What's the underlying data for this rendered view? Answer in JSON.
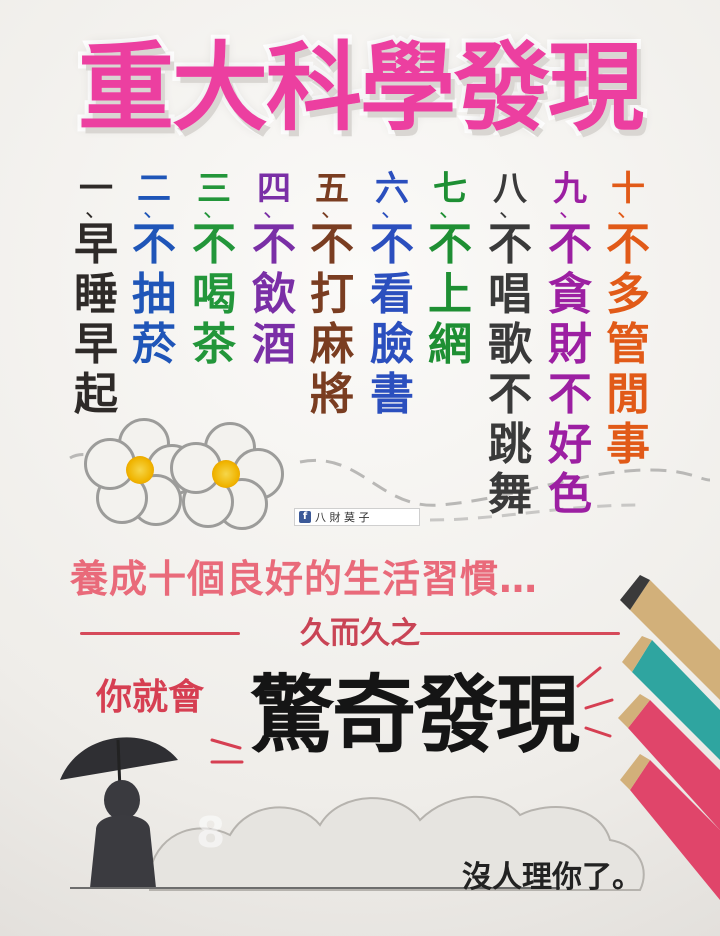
{
  "title": "重大科學發現",
  "rules": [
    {
      "num": "一",
      "text": "早睡早起"
    },
    {
      "num": "二",
      "text": "不抽菸"
    },
    {
      "num": "三",
      "text": "不喝茶"
    },
    {
      "num": "四",
      "text": "不飲酒"
    },
    {
      "num": "五",
      "text": "不打麻將"
    },
    {
      "num": "六",
      "text": "不看臉書"
    },
    {
      "num": "七",
      "text": "不上網"
    },
    {
      "num": "八",
      "text": "不唱歌不跳舞"
    },
    {
      "num": "九",
      "text": "不貪財不好色"
    },
    {
      "num": "十",
      "text": "不多管閒事"
    }
  ],
  "credit": "八 財 莫 子",
  "subtitle": "養成十個良好的生活習慣…",
  "divider": "久而久之",
  "you_will": "你就會",
  "discovery": "驚奇發現",
  "punchline": "沒人理你了。",
  "watermark": "8"
}
